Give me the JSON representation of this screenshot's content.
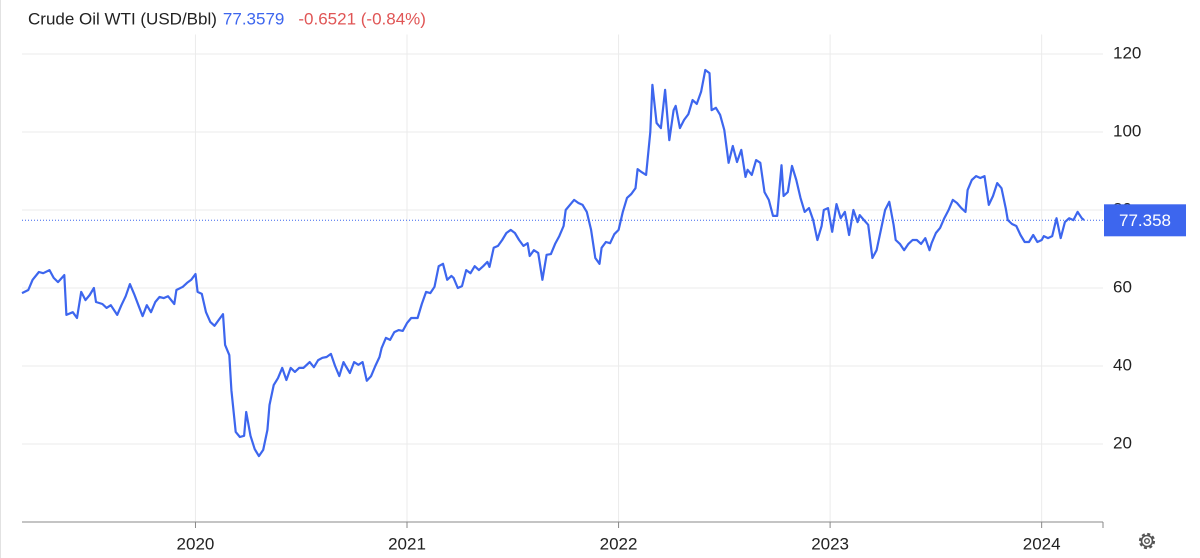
{
  "chart_data": {
    "type": "line",
    "title": "Crude Oil WTI (USD/Bbl)",
    "price_text": "77.3579",
    "change_text": "-0.6521 (-0.84%)",
    "last_value": 77.358,
    "color": "#3d66ee",
    "x": [
      2019.18,
      2019.21,
      2019.23,
      2019.26,
      2019.28,
      2019.31,
      2019.33,
      2019.35,
      2019.38,
      2019.39,
      2019.42,
      2019.44,
      2019.46,
      2019.48,
      2019.5,
      2019.52,
      2019.53,
      2019.56,
      2019.58,
      2019.6,
      2019.63,
      2019.65,
      2019.67,
      2019.69,
      2019.71,
      2019.73,
      2019.75,
      2019.77,
      2019.79,
      2019.81,
      2019.83,
      2019.85,
      2019.87,
      2019.9,
      2019.91,
      2019.94,
      2019.96,
      2019.98,
      2020.0,
      2020.01,
      2020.03,
      2020.05,
      2020.07,
      2020.09,
      2020.11,
      2020.13,
      2020.14,
      2020.16,
      2020.17,
      2020.19,
      2020.21,
      2020.23,
      2020.24,
      2020.26,
      2020.28,
      2020.3,
      2020.32,
      2020.34,
      2020.35,
      2020.37,
      2020.39,
      2020.41,
      2020.43,
      2020.45,
      2020.47,
      2020.49,
      2020.51,
      2020.52,
      2020.54,
      2020.56,
      2020.58,
      2020.6,
      2020.62,
      2020.64,
      2020.66,
      2020.68,
      2020.7,
      2020.71,
      2020.73,
      2020.75,
      2020.77,
      2020.79,
      2020.81,
      2020.83,
      2020.85,
      2020.87,
      2020.88,
      2020.9,
      2020.92,
      2020.94,
      2020.96,
      2020.98,
      2021.0,
      2021.02,
      2021.04,
      2021.05,
      2021.07,
      2021.09,
      2021.11,
      2021.13,
      2021.15,
      2021.17,
      2021.19,
      2021.21,
      2021.22,
      2021.24,
      2021.26,
      2021.28,
      2021.3,
      2021.32,
      2021.34,
      2021.36,
      2021.38,
      2021.39,
      2021.41,
      2021.43,
      2021.45,
      2021.47,
      2021.49,
      2021.51,
      2021.53,
      2021.55,
      2021.57,
      2021.58,
      2021.6,
      2021.62,
      2021.64,
      2021.66,
      2021.68,
      2021.7,
      2021.72,
      2021.74,
      2021.75,
      2021.77,
      2021.79,
      2021.81,
      2021.83,
      2021.85,
      2021.87,
      2021.89,
      2021.91,
      2021.92,
      2021.94,
      2021.96,
      2021.98,
      2022.0,
      2022.02,
      2022.04,
      2022.06,
      2022.08,
      2022.09,
      2022.11,
      2022.13,
      2022.15,
      2022.16,
      2022.18,
      2022.2,
      2022.22,
      2022.24,
      2022.26,
      2022.27,
      2022.29,
      2022.31,
      2022.33,
      2022.35,
      2022.37,
      2022.39,
      2022.41,
      2022.43,
      2022.44,
      2022.46,
      2022.48,
      2022.5,
      2022.52,
      2022.54,
      2022.56,
      2022.58,
      2022.6,
      2022.61,
      2022.63,
      2022.65,
      2022.67,
      2022.69,
      2022.71,
      2022.73,
      2022.75,
      2022.77,
      2022.78,
      2022.8,
      2022.82,
      2022.84,
      2022.86,
      2022.88,
      2022.9,
      2022.92,
      2022.94,
      2022.96,
      2022.97,
      2022.99,
      2023.01,
      2023.03,
      2023.05,
      2023.07,
      2023.09,
      2023.11,
      2023.13,
      2023.14,
      2023.16,
      2023.18,
      2023.2,
      2023.22,
      2023.24,
      2023.26,
      2023.28,
      2023.3,
      2023.31,
      2023.33,
      2023.35,
      2023.37,
      2023.39,
      2023.41,
      2023.43,
      2023.45,
      2023.47,
      2023.48,
      2023.5,
      2023.52,
      2023.54,
      2023.56,
      2023.58,
      2023.6,
      2023.62,
      2023.64,
      2023.65,
      2023.67,
      2023.69,
      2023.71,
      2023.73,
      2023.75,
      2023.77,
      2023.79,
      2023.81,
      2023.83,
      2023.84,
      2023.86,
      2023.88,
      2023.9,
      2023.92,
      2023.94,
      2023.96,
      2023.98,
      2024.0,
      2024.01,
      2024.03,
      2024.05,
      2024.07,
      2024.09,
      2024.11,
      2024.13,
      2024.15,
      2024.17,
      2024.19,
      2024.2
    ],
    "values": [
      58.7,
      59.5,
      62.1,
      64.1,
      63.8,
      64.6,
      62.6,
      61.5,
      63.3,
      53.1,
      53.8,
      52.3,
      59.0,
      56.9,
      58.2,
      60.0,
      56.4,
      55.9,
      54.9,
      55.6,
      53.1,
      55.6,
      57.9,
      61.0,
      58.5,
      55.6,
      52.8,
      55.6,
      53.8,
      56.4,
      57.7,
      57.4,
      57.9,
      55.9,
      59.5,
      60.3,
      61.3,
      62.1,
      63.6,
      59.0,
      58.5,
      53.8,
      51.3,
      50.3,
      51.8,
      53.3,
      45.4,
      42.8,
      33.8,
      23.1,
      21.8,
      22.1,
      28.2,
      22.1,
      18.7,
      16.9,
      18.5,
      23.6,
      30.0,
      35.1,
      36.9,
      39.5,
      36.4,
      39.5,
      38.5,
      39.5,
      39.5,
      40.0,
      41.0,
      39.7,
      41.5,
      42.1,
      42.3,
      43.1,
      40.0,
      37.4,
      41.0,
      40.0,
      38.2,
      41.0,
      40.3,
      41.0,
      36.2,
      37.4,
      40.0,
      42.3,
      44.6,
      47.2,
      46.7,
      48.7,
      49.2,
      49.0,
      51.0,
      52.3,
      52.3,
      52.3,
      55.9,
      59.0,
      58.7,
      60.3,
      65.6,
      66.2,
      62.1,
      63.1,
      62.6,
      60.0,
      60.5,
      64.6,
      63.8,
      65.6,
      64.6,
      65.6,
      66.7,
      65.4,
      70.3,
      70.8,
      72.3,
      74.1,
      74.9,
      74.1,
      72.3,
      70.8,
      71.5,
      68.2,
      69.7,
      69.0,
      62.1,
      68.5,
      68.7,
      71.3,
      73.3,
      75.9,
      80.0,
      81.3,
      82.6,
      81.8,
      81.3,
      79.5,
      74.9,
      67.7,
      66.2,
      70.3,
      71.8,
      71.5,
      73.8,
      74.9,
      79.5,
      83.1,
      84.1,
      85.6,
      90.5,
      89.7,
      89.0,
      100.0,
      112.1,
      102.3,
      101.0,
      110.8,
      97.9,
      105.6,
      106.7,
      101.0,
      103.1,
      104.6,
      108.2,
      107.2,
      110.3,
      115.9,
      115.1,
      105.6,
      106.2,
      104.4,
      100.5,
      92.1,
      96.4,
      92.3,
      95.4,
      88.5,
      90.3,
      89.0,
      92.8,
      92.1,
      84.6,
      82.6,
      78.5,
      78.5,
      91.5,
      83.6,
      84.6,
      91.3,
      87.7,
      83.1,
      79.5,
      80.5,
      77.4,
      72.3,
      75.9,
      80.0,
      80.5,
      74.4,
      81.5,
      77.9,
      79.5,
      73.6,
      80.0,
      76.9,
      78.7,
      77.4,
      76.2,
      67.7,
      69.7,
      74.9,
      80.0,
      82.1,
      76.2,
      72.3,
      71.3,
      69.7,
      71.3,
      72.3,
      72.3,
      71.3,
      72.8,
      69.7,
      71.5,
      74.1,
      75.4,
      77.9,
      80.0,
      82.6,
      81.8,
      80.5,
      79.5,
      85.1,
      87.7,
      88.7,
      88.2,
      88.7,
      81.3,
      83.6,
      86.9,
      85.6,
      80.5,
      77.4,
      76.4,
      75.9,
      73.6,
      71.8,
      71.8,
      73.6,
      71.8,
      72.3,
      73.3,
      72.8,
      73.3,
      77.9,
      72.8,
      76.9,
      77.9,
      77.4,
      79.5,
      77.9,
      77.4
    ],
    "xlim": [
      2019.18,
      2024.29
    ],
    "xticks": [
      2020,
      2021,
      2022,
      2023,
      2024
    ],
    "ylim": [
      0,
      125
    ],
    "yticks": [
      20,
      40,
      60,
      80,
      100,
      120
    ],
    "grid": true
  }
}
